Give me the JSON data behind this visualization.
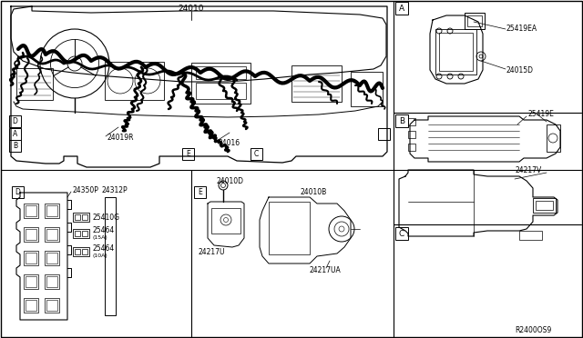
{
  "background_color": "#ffffff",
  "line_color": "#000000",
  "fig_width": 6.4,
  "fig_height": 3.72,
  "dpi": 100,
  "labels": {
    "main_harness": "24010",
    "sub1": "24019R",
    "sub2": "24016",
    "ref_code": "R2400OS9",
    "sectionA_1": "25419EA",
    "sectionA_2": "24015D",
    "sectionB_1": "25419E",
    "sectionC_1": "24217V",
    "sectionD_label": "D",
    "sectionD_1": "24350P",
    "sectionD_2": "24312P",
    "sectionD_3": "25410G",
    "sectionD_4": "25464",
    "sectionD_4a": "(15A)",
    "sectionD_5": "25464",
    "sectionD_5a": "(10A)",
    "sectionE_label": "E",
    "sectionE_1": "24010D",
    "sectionE_2": "24010B",
    "sectionE_3": "24217U",
    "sectionE_4": "24217UA",
    "letter_A": "A",
    "letter_B": "B",
    "letter_C": "C",
    "letter_D": "D",
    "letter_E": "E",
    "dash_A": "A",
    "dash_B": "B",
    "dash_D": "D"
  }
}
